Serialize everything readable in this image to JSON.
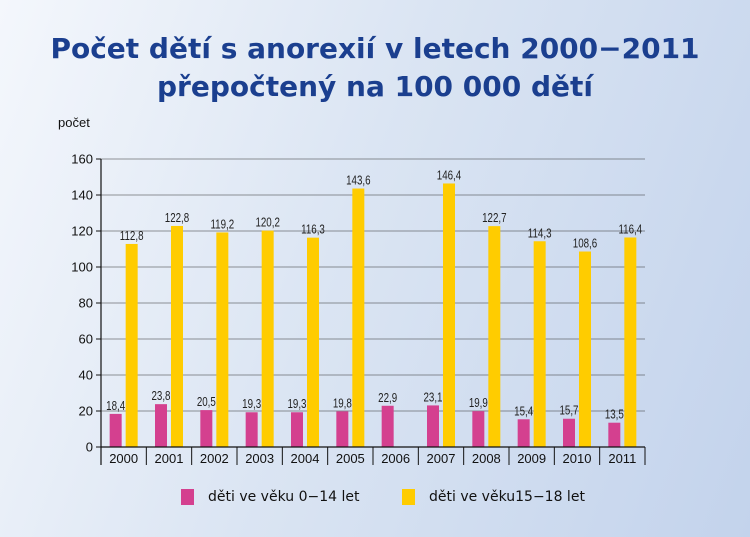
{
  "chart_data": {
    "type": "bar",
    "title_line1": "Počet dětí s anorexií v letech 2000−2011",
    "title_line2": "přepočtený na 100 000 dětí",
    "ylabel": "počet",
    "xlabel": "",
    "ylim": [
      0,
      160
    ],
    "yticks": [
      0,
      20,
      40,
      60,
      80,
      100,
      120,
      140,
      160
    ],
    "grid": true,
    "legend_position": "bottom",
    "categories": [
      "2000",
      "2001",
      "2002",
      "2003",
      "2004",
      "2005",
      "2006",
      "2007",
      "2008",
      "2009",
      "2010",
      "2011"
    ],
    "series": [
      {
        "name": "děti ve věku 0−14 let",
        "color": "#d4408f",
        "values": [
          18.4,
          23.8,
          20.5,
          19.3,
          19.3,
          19.8,
          22.9,
          23.1,
          19.9,
          15.4,
          15.7,
          13.5
        ],
        "labels": [
          "18,4",
          "23,8",
          "20,5",
          "19,3",
          "19,3",
          "19,8",
          "22,9",
          "23,1",
          "19,9",
          "15,4",
          "15,7",
          "13,5"
        ]
      },
      {
        "name": "děti ve věku15−18 let",
        "color": "#ffcc00",
        "values": [
          112.8,
          122.8,
          119.2,
          120.2,
          116.3,
          143.6,
          null,
          146.4,
          122.7,
          114.3,
          108.6,
          116.4
        ],
        "labels": [
          "112,8",
          "122,8",
          "119,2",
          "120,2",
          "116,3",
          "143,6",
          null,
          "146,4",
          "122,7",
          "114,3",
          "108,6",
          "116,4"
        ]
      }
    ]
  }
}
